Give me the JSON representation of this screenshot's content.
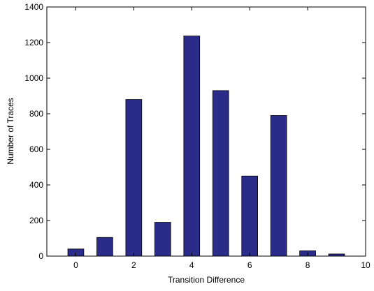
{
  "chart_data": {
    "type": "bar",
    "title": "",
    "xlabel": "Transition Difference",
    "ylabel": "Number of Traces",
    "xlim": [
      -1,
      10
    ],
    "ylim": [
      0,
      1400
    ],
    "xticks": [
      0,
      2,
      4,
      6,
      8,
      10
    ],
    "yticks": [
      0,
      200,
      400,
      600,
      800,
      1000,
      1200,
      1400
    ],
    "x": [
      0,
      1,
      2,
      3,
      4,
      5,
      6,
      7,
      8,
      9
    ],
    "values": [
      40,
      105,
      880,
      190,
      1237,
      930,
      450,
      790,
      30,
      12
    ],
    "bar_color": "#2b2b8a",
    "grid": false,
    "legend": "none"
  }
}
